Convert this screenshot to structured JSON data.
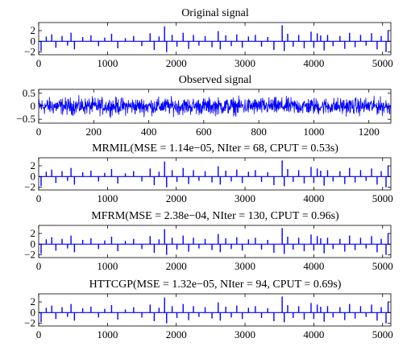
{
  "colors": {
    "signal": "#0000ff",
    "axes": "#000000",
    "background": "#ffffff"
  },
  "chart_data": [
    {
      "type": "line",
      "title": "Original signal",
      "xlim": [
        0,
        5120
      ],
      "ylim": [
        -2.5,
        3.5
      ],
      "xticks": [
        0,
        1000,
        2000,
        3000,
        4000,
        5000
      ],
      "xtick_labels": [
        "0",
        "1000",
        "2000",
        "3000",
        "4000",
        "5000"
      ],
      "yticks": [
        -2,
        0,
        2
      ],
      "ytick_labels": [
        "−2",
        "0",
        "2"
      ],
      "grid": false,
      "series": [
        {
          "kind": "sparse-spikes",
          "spikes": [
            {
              "x": 35,
              "y": -1.8
            },
            {
              "x": 110,
              "y": 0.9
            },
            {
              "x": 190,
              "y": 1.3
            },
            {
              "x": 250,
              "y": -1.2
            },
            {
              "x": 340,
              "y": 1.0
            },
            {
              "x": 420,
              "y": -0.8
            },
            {
              "x": 470,
              "y": 1.6
            },
            {
              "x": 520,
              "y": -1.5
            },
            {
              "x": 640,
              "y": 0.8
            },
            {
              "x": 760,
              "y": 1.1
            },
            {
              "x": 870,
              "y": -0.9
            },
            {
              "x": 960,
              "y": 0.7
            },
            {
              "x": 1060,
              "y": 1.4
            },
            {
              "x": 1150,
              "y": -1.3
            },
            {
              "x": 1260,
              "y": 0.6
            },
            {
              "x": 1380,
              "y": 1.0
            },
            {
              "x": 1500,
              "y": -0.9
            },
            {
              "x": 1620,
              "y": 1.5
            },
            {
              "x": 1680,
              "y": -1.6
            },
            {
              "x": 1750,
              "y": 0.9
            },
            {
              "x": 1830,
              "y": 2.8
            },
            {
              "x": 1860,
              "y": -2.0
            },
            {
              "x": 1940,
              "y": 1.2
            },
            {
              "x": 2010,
              "y": -1.0
            },
            {
              "x": 2100,
              "y": 1.6
            },
            {
              "x": 2180,
              "y": -1.4
            },
            {
              "x": 2250,
              "y": 1.2
            },
            {
              "x": 2330,
              "y": -0.8
            },
            {
              "x": 2420,
              "y": 1.0
            },
            {
              "x": 2520,
              "y": -1.1
            },
            {
              "x": 2610,
              "y": 1.9
            },
            {
              "x": 2640,
              "y": -1.5
            },
            {
              "x": 2720,
              "y": 1.1
            },
            {
              "x": 2800,
              "y": -0.9
            },
            {
              "x": 2880,
              "y": 1.3
            },
            {
              "x": 2960,
              "y": -1.2
            },
            {
              "x": 3050,
              "y": 0.9
            },
            {
              "x": 3150,
              "y": 1.2
            },
            {
              "x": 3240,
              "y": -1.0
            },
            {
              "x": 3330,
              "y": 0.8
            },
            {
              "x": 3420,
              "y": -1.6
            },
            {
              "x": 3540,
              "y": 3.0
            },
            {
              "x": 3570,
              "y": -1.8
            },
            {
              "x": 3620,
              "y": 1.4
            },
            {
              "x": 3700,
              "y": -1.0
            },
            {
              "x": 3780,
              "y": 1.2
            },
            {
              "x": 3860,
              "y": -1.3
            },
            {
              "x": 3960,
              "y": 1.8
            },
            {
              "x": 4000,
              "y": -1.2
            },
            {
              "x": 4050,
              "y": 1.5
            },
            {
              "x": 4100,
              "y": 1.1
            },
            {
              "x": 4150,
              "y": -1.7
            },
            {
              "x": 4200,
              "y": 1.2
            },
            {
              "x": 4280,
              "y": -0.9
            },
            {
              "x": 4380,
              "y": 1.0
            },
            {
              "x": 4450,
              "y": -1.4
            },
            {
              "x": 4520,
              "y": 1.6
            },
            {
              "x": 4600,
              "y": -1.1
            },
            {
              "x": 4680,
              "y": 1.2
            },
            {
              "x": 4760,
              "y": -0.8
            },
            {
              "x": 4840,
              "y": 1.5
            },
            {
              "x": 4920,
              "y": -1.5
            },
            {
              "x": 4980,
              "y": 1.0
            },
            {
              "x": 5050,
              "y": -2.0
            },
            {
              "x": 5080,
              "y": 2.0
            }
          ]
        }
      ]
    },
    {
      "type": "line",
      "title": "Observed signal",
      "xlim": [
        0,
        1280
      ],
      "ylim": [
        -0.65,
        0.65
      ],
      "xticks": [
        0,
        200,
        400,
        600,
        800,
        1000,
        1200
      ],
      "xtick_labels": [
        "0",
        "200",
        "400",
        "600",
        "800",
        "1000",
        "1200"
      ],
      "yticks": [
        -0.5,
        0,
        0.5
      ],
      "ytick_labels": [
        "−0.5",
        "0",
        "0.5"
      ],
      "grid": false,
      "series": [
        {
          "kind": "dense-noise",
          "count": 1280,
          "amplitude": 0.3
        }
      ]
    },
    {
      "type": "line",
      "title": "MRMIL(MSE = 1.14e−05, NIter = 68, CPUT = 0.53s)",
      "xlim": [
        0,
        5120
      ],
      "ylim": [
        -2.5,
        3.5
      ],
      "xticks": [
        0,
        1000,
        2000,
        3000,
        4000,
        5000
      ],
      "xtick_labels": [
        "0",
        "1000",
        "2000",
        "3000",
        "4000",
        "5000"
      ],
      "yticks": [
        -2,
        0,
        2
      ],
      "ytick_labels": [
        "−2",
        "0",
        "2"
      ],
      "grid": false,
      "series": [
        {
          "kind": "recovered-spikes",
          "source": 0
        }
      ]
    },
    {
      "type": "line",
      "title": "MFRM(MSE = 2.38e−04, NIter = 130, CPUT = 0.96s)",
      "xlim": [
        0,
        5120
      ],
      "ylim": [
        -2.5,
        3.5
      ],
      "xticks": [
        0,
        1000,
        2000,
        3000,
        4000,
        5000
      ],
      "xtick_labels": [
        "0",
        "1000",
        "2000",
        "3000",
        "4000",
        "5000"
      ],
      "yticks": [
        -2,
        0,
        2
      ],
      "ytick_labels": [
        "−2",
        "0",
        "2"
      ],
      "grid": false,
      "series": [
        {
          "kind": "recovered-spikes",
          "source": 0
        }
      ]
    },
    {
      "type": "line",
      "title": "HTTCGP(MSE = 1.32e−05, NIter = 94, CPUT = 0.69s)",
      "xlim": [
        0,
        5120
      ],
      "ylim": [
        -2.5,
        3.5
      ],
      "xticks": [
        0,
        1000,
        2000,
        3000,
        4000,
        5000
      ],
      "xtick_labels": [
        "0",
        "1000",
        "2000",
        "3000",
        "4000",
        "5000"
      ],
      "yticks": [
        -2,
        0,
        2
      ],
      "ytick_labels": [
        "−2",
        "0",
        "2"
      ],
      "grid": false,
      "series": [
        {
          "kind": "recovered-spikes",
          "source": 0
        }
      ]
    }
  ]
}
